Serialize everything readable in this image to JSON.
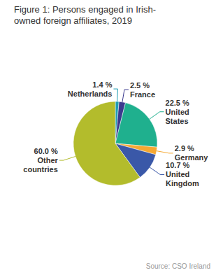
{
  "chart_data": {
    "type": "pie",
    "title": "Figure 1: Persons engaged in Irish-owned foreign affiliates, 2019",
    "categories": [
      "Netherlands",
      "France",
      "United States",
      "Germany",
      "United Kingdom",
      "Other countries"
    ],
    "values": [
      1.4,
      2.5,
      22.5,
      2.9,
      10.7,
      60.0
    ],
    "value_labels": [
      "1.4 %",
      "2.5 %",
      "22.5 %",
      "2.9 %",
      "10.7 %",
      "60.0 %"
    ],
    "colors": [
      "#1f9db4",
      "#3b3a8e",
      "#1fb08e",
      "#f5a832",
      "#3a58a8",
      "#b3bc2c"
    ],
    "data_labels": true,
    "source": "Source: CSO Ireland"
  }
}
